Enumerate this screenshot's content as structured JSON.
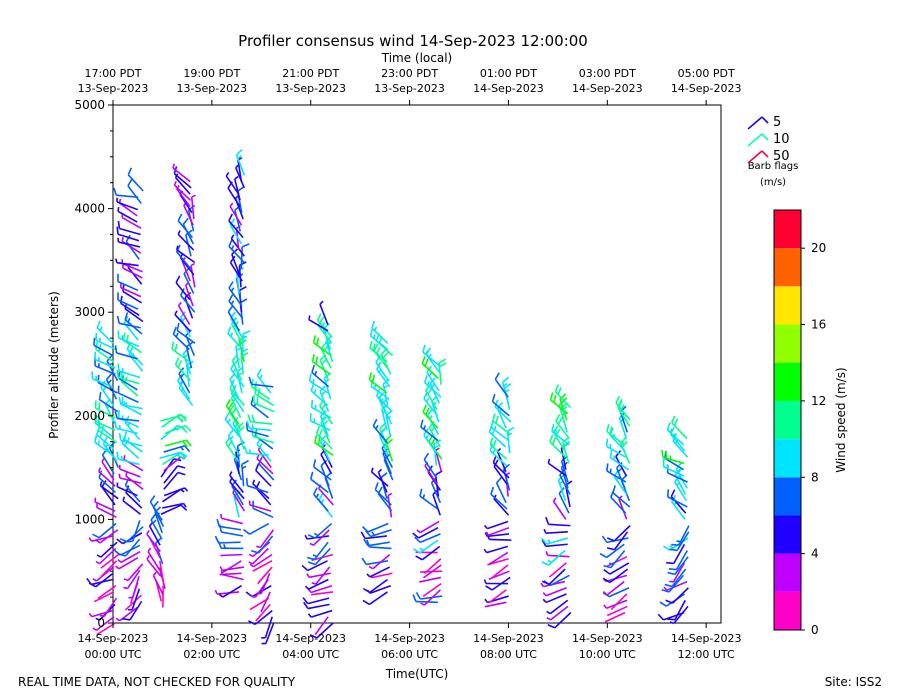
{
  "chart_data": {
    "type": "wind-barb-profile",
    "title": "Profiler consensus wind 14-Sep-2023 12:00:00",
    "top_axis_label": "Time (local)",
    "xlabel": "Time(UTC)",
    "ylabel": "Profiler altitude (meters)",
    "colorbar_label": "Wind speed (m/s)",
    "footer_left": "REAL TIME DATA, NOT CHECKED FOR QUALITY",
    "footer_right": "Site: ISS2",
    "legend": {
      "title_line1": "Barb flags",
      "title_line2": "(m/s)",
      "entries": [
        {
          "label": "5",
          "color": "#1e00ff"
        },
        {
          "label": "10",
          "color": "#00ffbf"
        },
        {
          "label": "50",
          "color": "#ff0040"
        }
      ]
    },
    "xlim_hours": [
      0,
      12.3
    ],
    "ylim": [
      0,
      5000
    ],
    "x_ticks": [
      {
        "h": 0,
        "line1": "14-Sep-2023",
        "line2": "00:00 UTC"
      },
      {
        "h": 2,
        "line1": "14-Sep-2023",
        "line2": "02:00 UTC"
      },
      {
        "h": 4,
        "line1": "14-Sep-2023",
        "line2": "04:00 UTC"
      },
      {
        "h": 6,
        "line1": "14-Sep-2023",
        "line2": "06:00 UTC"
      },
      {
        "h": 8,
        "line1": "14-Sep-2023",
        "line2": "08:00 UTC"
      },
      {
        "h": 10,
        "line1": "14-Sep-2023",
        "line2": "10:00 UTC"
      },
      {
        "h": 12,
        "line1": "14-Sep-2023",
        "line2": "12:00 UTC"
      }
    ],
    "top_ticks": [
      {
        "h": 0,
        "line1": "17:00 PDT",
        "line2": "13-Sep-2023"
      },
      {
        "h": 2,
        "line1": "19:00 PDT",
        "line2": "13-Sep-2023"
      },
      {
        "h": 4,
        "line1": "21:00 PDT",
        "line2": "13-Sep-2023"
      },
      {
        "h": 6,
        "line1": "23:00 PDT",
        "line2": "13-Sep-2023"
      },
      {
        "h": 8,
        "line1": "01:00 PDT",
        "line2": "14-Sep-2023"
      },
      {
        "h": 10,
        "line1": "03:00 PDT",
        "line2": "14-Sep-2023"
      },
      {
        "h": 12,
        "line1": "05:00 PDT",
        "line2": "14-Sep-2023"
      }
    ],
    "y_ticks": [
      0,
      1000,
      2000,
      3000,
      4000,
      5000
    ],
    "colorbar": {
      "min": 0,
      "max": 22,
      "step": 2,
      "ticks": [
        0,
        4,
        8,
        12,
        16,
        20
      ],
      "colors": [
        "#ff00c8",
        "#bf00ff",
        "#2000ff",
        "#0060ff",
        "#00e5ff",
        "#00ff90",
        "#00ff00",
        "#90ff00",
        "#ffe600",
        "#ff6000",
        "#ff0033"
      ]
    },
    "profiles": [
      {
        "h": 0.05,
        "z": [
          0,
          2700
        ],
        "dir": 315,
        "spd": 5,
        "note": "column, mixed"
      },
      {
        "h": 0.55,
        "z": [
          150,
          4200
        ],
        "dir": 300,
        "spd": 5
      },
      {
        "h": 1.0,
        "z": [
          150,
          2000
        ],
        "dir": 60,
        "spd": 6
      },
      {
        "h": 1.6,
        "z": [
          2100,
          4300
        ],
        "dir": 330,
        "spd": 5
      },
      {
        "h": 2.6,
        "z": [
          300,
          4350
        ],
        "dir": 340,
        "spd": 6
      },
      {
        "h": 3.2,
        "z": [
          0,
          2300
        ],
        "dir": 300,
        "spd": 5
      },
      {
        "h": 4.4,
        "z": [
          0,
          2900
        ],
        "dir": 320,
        "spd": 6
      },
      {
        "h": 5.6,
        "z": [
          300,
          2700
        ],
        "dir": 330,
        "spd": 6
      },
      {
        "h": 6.6,
        "z": [
          200,
          2500
        ],
        "dir": 330,
        "spd": 6
      },
      {
        "h": 8.0,
        "z": [
          200,
          2200
        ],
        "dir": 330,
        "spd": 5
      },
      {
        "h": 9.2,
        "z": [
          100,
          2100
        ],
        "dir": 330,
        "spd": 6
      },
      {
        "h": 10.4,
        "z": [
          100,
          2000
        ],
        "dir": 320,
        "spd": 6
      },
      {
        "h": 11.6,
        "z": [
          100,
          1800
        ],
        "dir": 310,
        "spd": 7
      }
    ]
  }
}
